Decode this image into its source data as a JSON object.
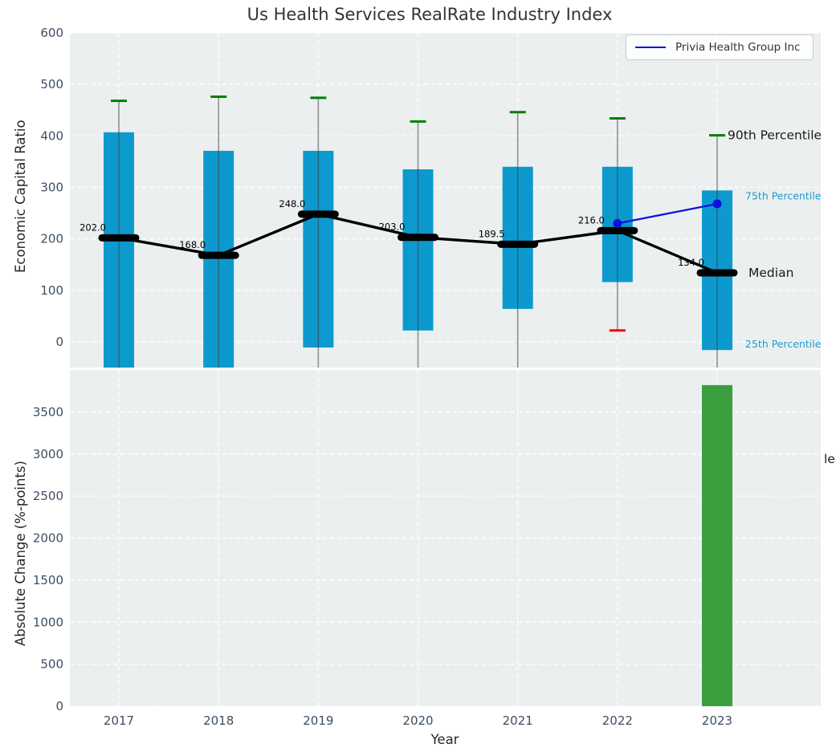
{
  "title": "Us Health Services RealRate Industry Index",
  "legend": {
    "label": "Privia Health Group Inc",
    "line_color": "#0f0fe0"
  },
  "xlabel": "Year",
  "colors": {
    "axes_bg": "#ebefef",
    "grid": "#ffffff",
    "box_blue": "#0c9ace",
    "bar_green": "#3b9e3f",
    "whisker_gray": "#404040",
    "cap_green": "#008000",
    "cap_red": "#ff0000",
    "median_black": "#000000",
    "company_blue": "#0f0fe0",
    "tick_label": "#3e4e62",
    "pct_label_blue": "#1f9bd0",
    "annotation_black": "#1a1a1a"
  },
  "chart_data": [
    {
      "type": "box-with-median-line",
      "panel": "top",
      "ylabel": "Economic Capital Ratio",
      "ylim": [
        -50,
        600
      ],
      "yticks": [
        0,
        100,
        200,
        300,
        400,
        500,
        600
      ],
      "categories": [
        "2017",
        "2018",
        "2019",
        "2020",
        "2021",
        "2022",
        "2023"
      ],
      "series": [
        {
          "name": "median",
          "values": [
            202.0,
            168.0,
            248.0,
            203.0,
            189.5,
            216.0,
            134.0
          ]
        },
        {
          "name": "p75_box_top",
          "values": [
            407,
            371,
            371,
            335,
            340,
            340,
            294
          ]
        },
        {
          "name": "p25_box_bottom",
          "values": [
            null,
            null,
            -11,
            22,
            64,
            116,
            -16
          ]
        },
        {
          "name": "p90_whisker_top",
          "values": [
            468,
            476,
            474,
            428,
            446,
            434,
            401
          ]
        },
        {
          "name": "p10_whisker_bottom",
          "values": [
            null,
            null,
            null,
            null,
            null,
            22,
            null
          ]
        },
        {
          "name": "Privia Health Group Inc",
          "values": [
            null,
            null,
            null,
            null,
            null,
            230,
            268
          ]
        }
      ],
      "median_labels": [
        "202.0",
        "168.0",
        "248.0",
        "203.0",
        "189.5",
        "216.0",
        "134.0"
      ],
      "annotations": {
        "p90": "90th Percentile",
        "p75": "75th Percentile",
        "median": "Median",
        "p25": "25th Percentile"
      },
      "legend_position": "upper right",
      "grid": true
    },
    {
      "type": "bar",
      "panel": "bottom",
      "ylabel": "Absolute Change (%-points)",
      "xlabel": "Year",
      "ylim": [
        0,
        4000
      ],
      "yticks": [
        0,
        500,
        1000,
        1500,
        2000,
        2500,
        3000,
        3500
      ],
      "categories": [
        "2017",
        "2018",
        "2019",
        "2020",
        "2021",
        "2022",
        "2023"
      ],
      "values": [
        null,
        null,
        null,
        null,
        null,
        null,
        3820
      ],
      "clipped_right_label": "le",
      "grid": true
    }
  ]
}
